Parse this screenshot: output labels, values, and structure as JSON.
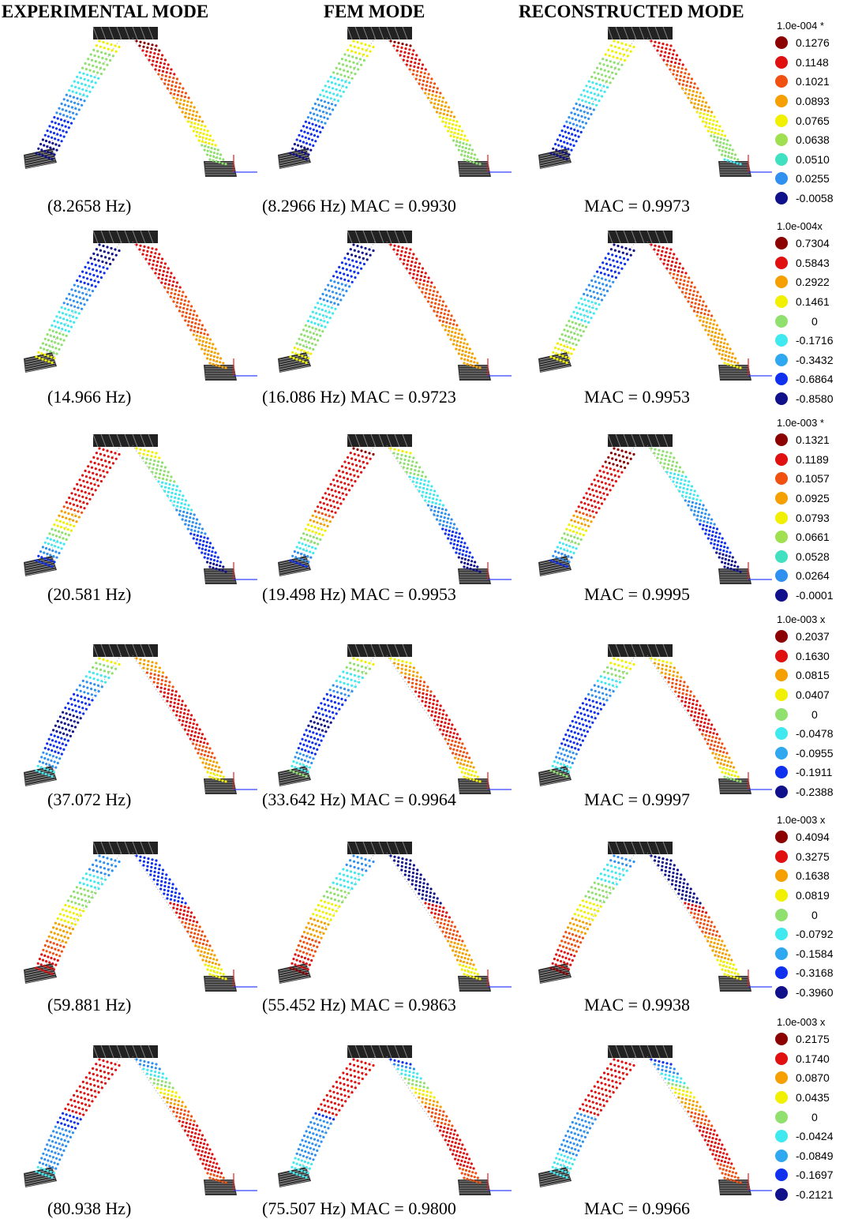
{
  "headers": {
    "experimental": "EXPERIMENTAL MODE",
    "fem": "FEM MODE",
    "reconstructed": "RECONSTRUCTED MODE"
  },
  "rows": [
    {
      "exp_caption": "(8.2658 Hz)",
      "fem_caption": "(8.2966 Hz) MAC = 0.9930",
      "rec_caption": "MAC = 0.9973",
      "legend": {
        "scale": "1.0e-004 *",
        "entries": [
          {
            "value": "0.1276",
            "color": "#8b0000"
          },
          {
            "value": "0.1148",
            "color": "#e01010"
          },
          {
            "value": "0.1021",
            "color": "#f05010"
          },
          {
            "value": "0.0893",
            "color": "#f5a000"
          },
          {
            "value": "0.0765",
            "color": "#f0f000"
          },
          {
            "value": "0.0638",
            "color": "#a0e050"
          },
          {
            "value": "0.0510",
            "color": "#40e0c0"
          },
          {
            "value": "0.0255",
            "color": "#3090f0"
          },
          {
            "value": "-0.0058",
            "color": "#10108a"
          }
        ]
      }
    },
    {
      "exp_caption": "(14.966 Hz)",
      "fem_caption": "(16.086 Hz) MAC = 0.9723",
      "rec_caption": "MAC = 0.9953",
      "legend": {
        "scale": "1.0e-004x",
        "entries": [
          {
            "value": "0.7304",
            "color": "#8b0000"
          },
          {
            "value": "0.5843",
            "color": "#e01010"
          },
          {
            "value": "0.2922",
            "color": "#f5a000"
          },
          {
            "value": "0.1461",
            "color": "#f0f000"
          },
          {
            "value": "0",
            "color": "#90e070"
          },
          {
            "value": "-0.1716",
            "color": "#40e8f0"
          },
          {
            "value": "-0.3432",
            "color": "#30a8f0"
          },
          {
            "value": "-0.6864",
            "color": "#1030f0"
          },
          {
            "value": "-0.8580",
            "color": "#10108a"
          }
        ]
      }
    },
    {
      "exp_caption": "(20.581 Hz)",
      "fem_caption": "(19.498 Hz) MAC = 0.9953",
      "rec_caption": "MAC = 0.9995",
      "legend": {
        "scale": "1.0e-003 *",
        "entries": [
          {
            "value": "0.1321",
            "color": "#8b0000"
          },
          {
            "value": "0.1189",
            "color": "#e01010"
          },
          {
            "value": "0.1057",
            "color": "#f05010"
          },
          {
            "value": "0.0925",
            "color": "#f5a000"
          },
          {
            "value": "0.0793",
            "color": "#f0f000"
          },
          {
            "value": "0.0661",
            "color": "#a0e050"
          },
          {
            "value": "0.0528",
            "color": "#40e0c0"
          },
          {
            "value": "0.0264",
            "color": "#3090f0"
          },
          {
            "value": "-0.0001",
            "color": "#10108a"
          }
        ]
      }
    },
    {
      "exp_caption": "(37.072 Hz)",
      "fem_caption": "(33.642 Hz) MAC = 0.9964",
      "rec_caption": "MAC = 0.9997",
      "legend": {
        "scale": "1.0e-003 x",
        "entries": [
          {
            "value": "0.2037",
            "color": "#8b0000"
          },
          {
            "value": "0.1630",
            "color": "#e01010"
          },
          {
            "value": "0.0815",
            "color": "#f5a000"
          },
          {
            "value": "0.0407",
            "color": "#f0f000"
          },
          {
            "value": "0",
            "color": "#90e070"
          },
          {
            "value": "-0.0478",
            "color": "#40e8f0"
          },
          {
            "value": "-0.0955",
            "color": "#30a8f0"
          },
          {
            "value": "-0.1911",
            "color": "#1030f0"
          },
          {
            "value": "-0.2388",
            "color": "#10108a"
          }
        ]
      }
    },
    {
      "exp_caption": "(59.881 Hz)",
      "fem_caption": "(55.452 Hz) MAC = 0.9863",
      "rec_caption": "MAC = 0.9938",
      "legend": {
        "scale": "1.0e-003 x",
        "entries": [
          {
            "value": "0.4094",
            "color": "#8b0000"
          },
          {
            "value": "0.3275",
            "color": "#e01010"
          },
          {
            "value": "0.1638",
            "color": "#f5a000"
          },
          {
            "value": "0.0819",
            "color": "#f0f000"
          },
          {
            "value": "0",
            "color": "#90e070"
          },
          {
            "value": "-0.0792",
            "color": "#40e8f0"
          },
          {
            "value": "-0.1584",
            "color": "#30a8f0"
          },
          {
            "value": "-0.3168",
            "color": "#1030f0"
          },
          {
            "value": "-0.3960",
            "color": "#10108a"
          }
        ]
      }
    },
    {
      "exp_caption": "(80.938 Hz)",
      "fem_caption": "(75.507 Hz) MAC = 0.9800",
      "rec_caption": "MAC = 0.9966",
      "legend": {
        "scale": "1.0e-003 x",
        "entries": [
          {
            "value": "0.2175",
            "color": "#8b0000"
          },
          {
            "value": "0.1740",
            "color": "#e01010"
          },
          {
            "value": "0.0870",
            "color": "#f5a000"
          },
          {
            "value": "0.0435",
            "color": "#f0f000"
          },
          {
            "value": "0",
            "color": "#90e070"
          },
          {
            "value": "-0.0424",
            "color": "#40e8f0"
          },
          {
            "value": "-0.0849",
            "color": "#30a8f0"
          },
          {
            "value": "-0.1697",
            "color": "#1030f0"
          },
          {
            "value": "-0.2121",
            "color": "#10108a"
          }
        ]
      }
    }
  ]
}
